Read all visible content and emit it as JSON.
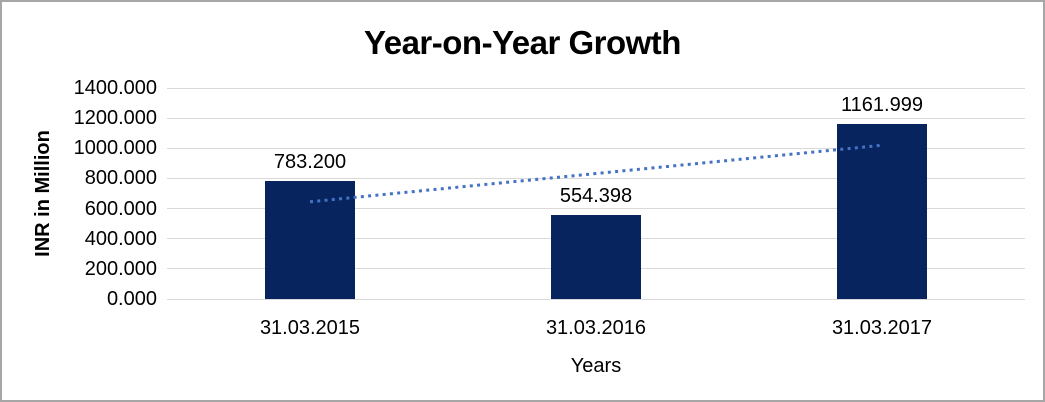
{
  "chart_data": {
    "type": "bar",
    "title": "Year-on-Year Growth",
    "xlabel": "Years",
    "ylabel": "INR in Million",
    "categories": [
      "31.03.2015",
      "31.03.2016",
      "31.03.2017"
    ],
    "values": [
      783.2,
      554.398,
      1161.999
    ],
    "data_labels": [
      "783.200",
      "554.398",
      "1161.999"
    ],
    "ylim": [
      0,
      1400
    ],
    "ytick_step": 200,
    "ytick_labels": [
      "0.000",
      "200.000",
      "400.000",
      "600.000",
      "800.000",
      "1000.000",
      "1200.000",
      "1400.000"
    ],
    "grid": true,
    "legend": "none",
    "bar_color": "#07245f",
    "gridline_color": "#d9d9d9",
    "text_color": "#000000",
    "trendline": {
      "type": "linear",
      "style": "dotted",
      "color": "#4472C4",
      "start_value": 645,
      "end_value": 1020
    }
  },
  "frame": {
    "border_color": "#a6a6a6",
    "background": "#ffffff"
  }
}
